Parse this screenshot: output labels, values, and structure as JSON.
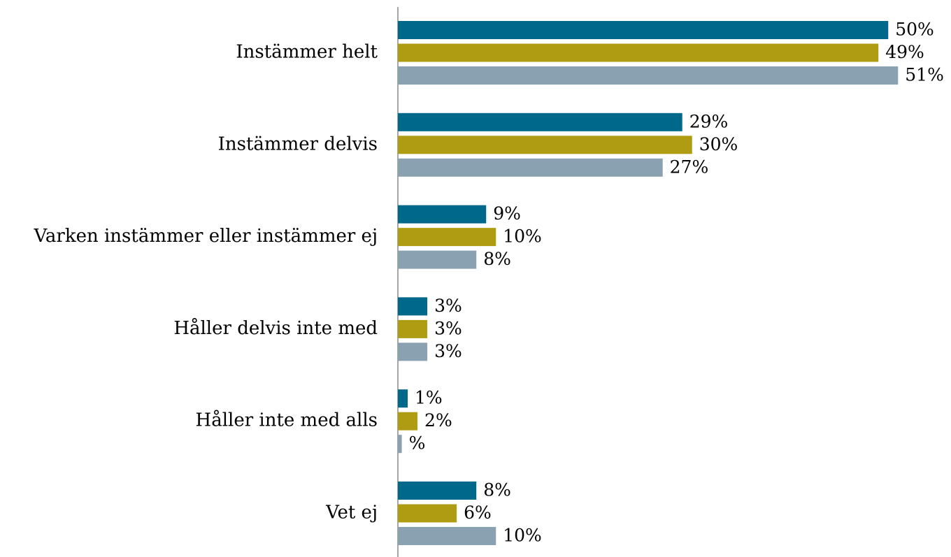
{
  "chart_data": {
    "type": "bar",
    "orientation": "horizontal",
    "categories": [
      "Instämmer helt",
      "Instämmer delvis",
      "Varken instämmer eller instämmer ej",
      "Håller delvis inte med",
      "Håller inte med alls",
      "Vet ej"
    ],
    "series": [
      {
        "color": "#00688b",
        "values": [
          50,
          29,
          9,
          3,
          1,
          8
        ],
        "value_labels": [
          "50%",
          "29%",
          "9%",
          "3%",
          "1%",
          "8%"
        ]
      },
      {
        "color": "#b09c12",
        "values": [
          49,
          30,
          10,
          3,
          2,
          6
        ],
        "value_labels": [
          "49%",
          "30%",
          "10%",
          "3%",
          "2%",
          "6%"
        ]
      },
      {
        "color": "#8aa1b1",
        "values": [
          51,
          27,
          8,
          3,
          0.4,
          10
        ],
        "value_labels": [
          "51%",
          "27%",
          "8%",
          "3%",
          "%",
          "10%"
        ]
      }
    ],
    "xlim": [
      0,
      56.4
    ]
  }
}
